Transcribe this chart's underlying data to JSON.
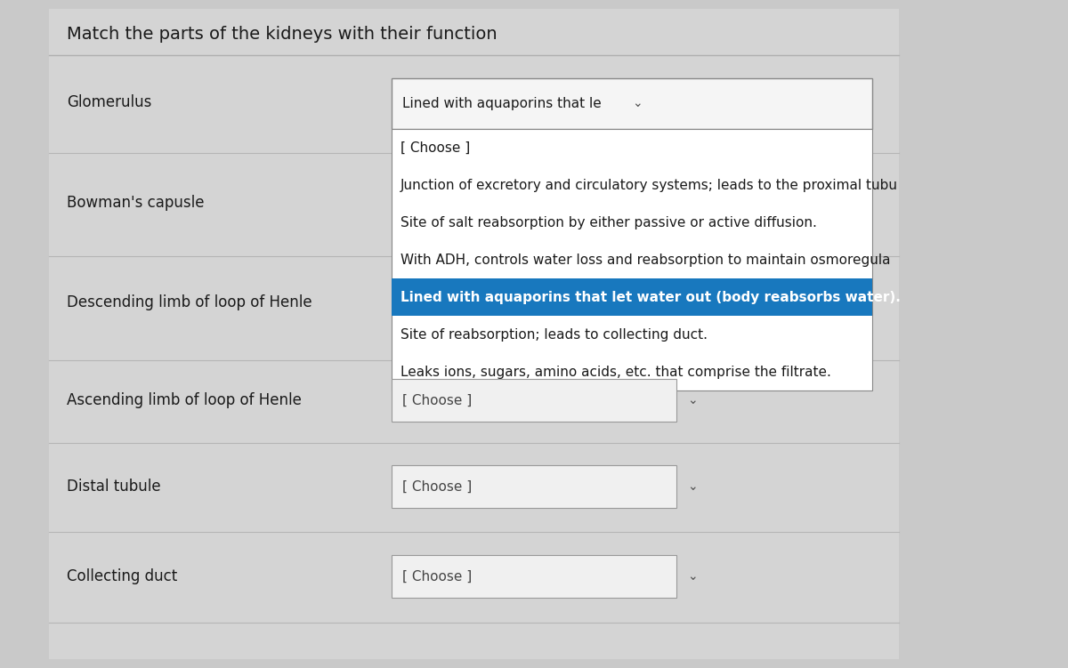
{
  "title": "Match the parts of the kidneys with their function",
  "bg_color": "#c9c9c9",
  "panel_color": "#d4d4d4",
  "panel_light": "#cecece",
  "white": "#ffffff",
  "border_color": "#aaaaaa",
  "text_dark": "#1a1a1a",
  "text_medium": "#333333",
  "highlight_bg": "#1878be",
  "highlight_fg": "#ffffff",
  "left_items": [
    "Glomerulus",
    "Bowman's capusle",
    "Descending limb of loop of Henle",
    "Ascending limb of loop of Henle",
    "Distal tubule",
    "Collecting duct"
  ],
  "glomerulus_selected": "Lined with aquaporins that le  ⌄",
  "dropdown_items": [
    "[ Choose ]",
    "Junction of excretory and circulatory systems; leads to the proximal tubu",
    "Site of salt reabsorption by either passive or active diffusion.",
    "With ADH, controls water loss and reabsorption to maintain osmoregula",
    "Lined with aquaporins that let water out (body reabsorbs water).",
    "Site of reabsorption; leads to collecting duct.",
    "Leaks ions, sugars, amino acids, etc. that comprise the filtrate."
  ],
  "highlighted_index": 4,
  "title_fs": 14,
  "label_fs": 12,
  "dd_fs": 11
}
